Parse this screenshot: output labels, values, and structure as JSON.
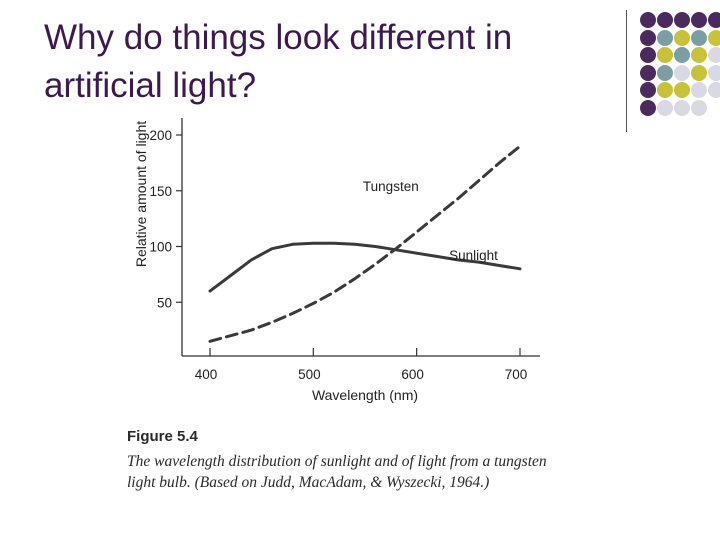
{
  "slide": {
    "title": "Why do things look different in artificial light?"
  },
  "decoration": {
    "dot_colors": [
      [
        "#4b2a5e",
        "#4b2a5e",
        "#4b2a5e",
        "#4b2a5e",
        "#4b2a5e"
      ],
      [
        "#4b2a5e",
        "#7a9ea3",
        "#c8c23a",
        "#7a9ea3",
        "#c8c23a"
      ],
      [
        "#4b2a5e",
        "#c8c23a",
        "#7a9ea3",
        "#c8c23a",
        "#d9d9e4"
      ],
      [
        "#4b2a5e",
        "#7a9ea3",
        "#d9d9e4",
        "#c8c23a",
        "#d9d9e4"
      ],
      [
        "#4b2a5e",
        "#c8c23a",
        "#c8c23a",
        "#d9d9e4",
        "#d9d9e4"
      ],
      [
        "#4b2a5e",
        "#d9d9e4",
        "#d9d9e4",
        "#d9d9e4",
        "#ffffff"
      ]
    ]
  },
  "figure": {
    "label": "Figure 5.4",
    "caption": "The wavelength distribution of sunlight and of light from a tungsten light bulb. (Based on Judd, MacAdam, & Wyszecki, 1964.)"
  },
  "chart_data": {
    "type": "line",
    "xlabel": "Wavelength (nm)",
    "ylabel": "Relative amount of light",
    "xlim": [
      400,
      700
    ],
    "ylim": [
      0,
      200
    ],
    "xticks": [
      400,
      500,
      600,
      700
    ],
    "yticks": [
      50,
      100,
      150,
      200
    ],
    "grid": false,
    "series": [
      {
        "name": "Sunlight",
        "style": "solid",
        "x": [
          400,
          420,
          440,
          460,
          480,
          500,
          520,
          540,
          560,
          580,
          600,
          620,
          640,
          660,
          680,
          700
        ],
        "y": [
          60,
          74,
          88,
          98,
          102,
          103,
          103,
          102,
          100,
          97,
          94,
          91,
          88,
          86,
          83,
          80
        ]
      },
      {
        "name": "Tungsten",
        "style": "dashed",
        "x": [
          400,
          420,
          440,
          460,
          480,
          500,
          520,
          540,
          560,
          580,
          600,
          620,
          640,
          660,
          680,
          700
        ],
        "y": [
          15,
          20,
          25,
          32,
          40,
          49,
          59,
          71,
          84,
          98,
          113,
          128,
          143,
          159,
          175,
          190
        ]
      }
    ]
  }
}
